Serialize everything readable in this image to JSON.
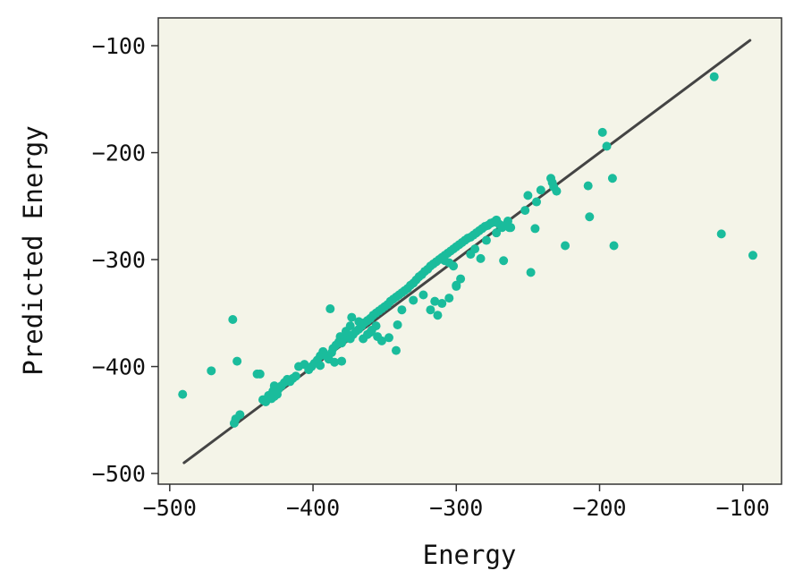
{
  "chart_data": {
    "type": "scatter",
    "title": "",
    "xlabel": "Energy",
    "ylabel": "Predicted Energy",
    "xlim": [
      -508,
      -73
    ],
    "ylim": [
      -510,
      -74
    ],
    "xticks": [
      -500,
      -400,
      -300,
      -200,
      -100
    ],
    "yticks": [
      -500,
      -400,
      -300,
      -200,
      -100
    ],
    "grid": false,
    "colors": {
      "background": "#f4f4e8",
      "points": "#1abc9c",
      "line": "#444444",
      "frame": "#333333"
    },
    "identity_line": {
      "x": [
        -490,
        -95
      ],
      "y": [
        -490,
        -95
      ]
    },
    "points": {
      "x": [
        -491,
        -471,
        -456,
        -453,
        -455,
        -454,
        -451,
        -439,
        -437,
        -435,
        -433,
        -432,
        -434,
        -431,
        -429,
        -427,
        -425,
        -424,
        -422,
        -420,
        -418,
        -416,
        -414,
        -412,
        -410,
        -406,
        -403,
        -401,
        -399,
        -397,
        -395,
        -393,
        -391,
        -389,
        -387,
        -386,
        -384,
        -382,
        -381,
        -379,
        -378,
        -376,
        -374,
        -372,
        -370,
        -368,
        -366,
        -364,
        -362,
        -360,
        -358,
        -356,
        -354,
        -352,
        -350,
        -348,
        -346,
        -344,
        -342,
        -340,
        -338,
        -336,
        -334,
        -332,
        -330,
        -328,
        -326,
        -324,
        -322,
        -320,
        -318,
        -316,
        -314,
        -312,
        -310,
        -308,
        -306,
        -304,
        -302,
        -300,
        -298,
        -296,
        -294,
        -292,
        -290,
        -288,
        -286,
        -284,
        -282,
        -280,
        -278,
        -276,
        -274,
        -272,
        -270,
        -268,
        -266,
        -264,
        -300,
        -360,
        -365,
        -355,
        -380,
        -385,
        -388,
        -395,
        -373,
        -352,
        -347,
        -342,
        -315,
        -310,
        -305,
        -300,
        -297,
        -313,
        -318,
        -330,
        -323,
        -283,
        -290,
        -267,
        -262,
        -245,
        -248,
        -250,
        -244,
        -234,
        -233,
        -232,
        -230,
        -224,
        -198,
        -195,
        -191,
        -190,
        -208,
        -207,
        -120,
        -115,
        -93,
        -427,
        -428,
        -374,
        -377,
        -380,
        -341,
        -338,
        -356,
        -359,
        -362,
        -368,
        -308,
        -305,
        -302,
        -287,
        -279,
        -272,
        -252,
        -241,
        -263
      ],
      "y": [
        -426,
        -404,
        -356,
        -395,
        -453,
        -449,
        -445,
        -407,
        -407,
        -431,
        -433,
        -430,
        -432,
        -427,
        -430,
        -428,
        -426,
        -421,
        -418,
        -415,
        -412,
        -414,
        -411,
        -409,
        -400,
        -398,
        -403,
        -400,
        -397,
        -394,
        -390,
        -386,
        -390,
        -393,
        -387,
        -383,
        -380,
        -377,
        -372,
        -375,
        -373,
        -371,
        -374,
        -370,
        -367,
        -365,
        -362,
        -359,
        -357,
        -355,
        -352,
        -350,
        -348,
        -346,
        -344,
        -342,
        -339,
        -337,
        -335,
        -333,
        -331,
        -329,
        -327,
        -324,
        -322,
        -319,
        -316,
        -314,
        -311,
        -309,
        -306,
        -304,
        -302,
        -300,
        -298,
        -296,
        -294,
        -292,
        -290,
        -288,
        -286,
        -284,
        -282,
        -280,
        -279,
        -277,
        -275,
        -273,
        -271,
        -269,
        -268,
        -266,
        -265,
        -263,
        -267,
        -270,
        -268,
        -264,
        -324,
        -368,
        -374,
        -372,
        -395,
        -396,
        -346,
        -399,
        -354,
        -376,
        -373,
        -385,
        -339,
        -341,
        -336,
        -325,
        -318,
        -352,
        -347,
        -338,
        -333,
        -299,
        -295,
        -301,
        -270,
        -271,
        -312,
        -240,
        -246,
        -224,
        -228,
        -232,
        -236,
        -287,
        -181,
        -194,
        -224,
        -287,
        -231,
        -260,
        -129,
        -276,
        -296,
        -418,
        -423,
        -362,
        -367,
        -378,
        -361,
        -347,
        -362,
        -366,
        -370,
        -358,
        -301,
        -303,
        -306,
        -290,
        -282,
        -275,
        -254,
        -235,
        -270
      ]
    }
  }
}
